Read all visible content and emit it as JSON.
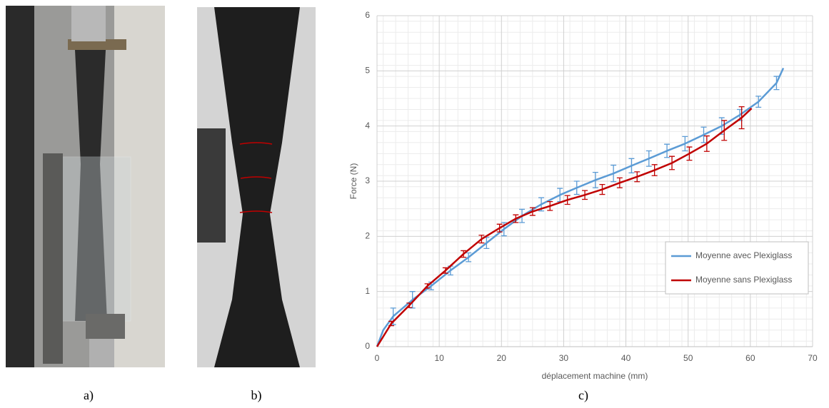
{
  "captions": [
    "a)",
    "b)",
    "c)"
  ],
  "chart_data": {
    "type": "line",
    "xlabel": "déplacement machine (mm)",
    "ylabel": "Force (N)",
    "xlim": [
      0,
      70
    ],
    "ylim": [
      0,
      6
    ],
    "xticks": [
      0,
      10,
      20,
      30,
      40,
      50,
      60,
      70
    ],
    "yticks": [
      0,
      1,
      2,
      3,
      4,
      5,
      6
    ],
    "grid": true,
    "legend": "lower right",
    "series": [
      {
        "name": "Moyenne avec Plexiglass",
        "color": "#5b9bd5",
        "x": [
          0,
          1,
          2.6,
          5.7,
          8.7,
          11.8,
          14.7,
          17.6,
          20.4,
          23.3,
          26.4,
          29.4,
          32.1,
          35.1,
          38,
          40.9,
          43.7,
          46.6,
          49.5,
          52.5,
          55.4,
          58.3,
          61.3,
          64.2,
          65.3
        ],
        "values": [
          0,
          0.3,
          0.55,
          0.85,
          1.1,
          1.38,
          1.62,
          1.88,
          2.13,
          2.37,
          2.58,
          2.75,
          2.88,
          3.02,
          3.14,
          3.28,
          3.41,
          3.55,
          3.68,
          3.84,
          4.0,
          4.2,
          4.44,
          4.78,
          5.05
        ],
        "errors": [
          null,
          null,
          0.15,
          0.15,
          0.07,
          0.08,
          0.08,
          0.1,
          0.12,
          0.12,
          0.12,
          0.12,
          0.12,
          0.14,
          0.15,
          0.13,
          0.14,
          0.12,
          0.13,
          0.14,
          0.15,
          0.1,
          0.1,
          0.12,
          null
        ]
      },
      {
        "name": "Moyenne sans Plexiglass",
        "color": "#c00000",
        "x": [
          0,
          2.3,
          5.2,
          8.1,
          11,
          13.9,
          16.8,
          19.7,
          22.3,
          25,
          27.8,
          30.6,
          33.4,
          36.2,
          39,
          41.8,
          44.6,
          47.4,
          50.2,
          53,
          55.8,
          58.6,
          60.2
        ],
        "values": [
          0,
          0.42,
          0.75,
          1.1,
          1.38,
          1.68,
          1.95,
          2.15,
          2.32,
          2.45,
          2.55,
          2.66,
          2.75,
          2.85,
          2.97,
          3.08,
          3.2,
          3.33,
          3.5,
          3.68,
          3.92,
          4.15,
          4.32
        ],
        "errors": [
          null,
          0.04,
          0.04,
          0.04,
          0.05,
          0.06,
          0.07,
          0.07,
          0.07,
          0.07,
          0.08,
          0.08,
          0.08,
          0.09,
          0.09,
          0.09,
          0.1,
          0.12,
          0.12,
          0.14,
          0.18,
          0.2,
          null
        ]
      }
    ]
  }
}
